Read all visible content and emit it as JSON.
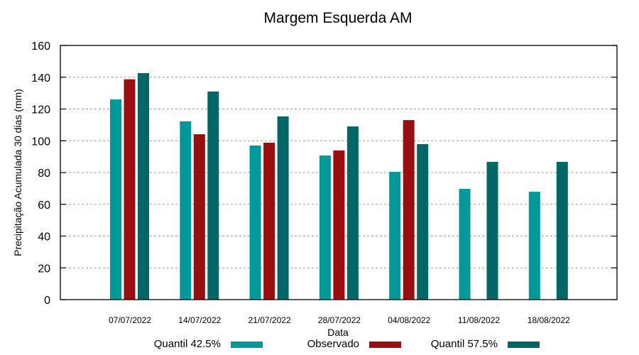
{
  "chart_data": {
    "type": "bar",
    "title": "Margem Esquerda AM",
    "xlabel": "Data",
    "ylabel": "Precipitação Acumulada 30 dias (mm)",
    "ylim": [
      0,
      160
    ],
    "yticks": [
      0,
      20,
      40,
      60,
      80,
      100,
      120,
      140,
      160
    ],
    "grid": true,
    "legend_position": "bottom",
    "categories": [
      "07/07/2022",
      "14/07/2022",
      "21/07/2022",
      "28/07/2022",
      "04/08/2022",
      "11/08/2022",
      "18/08/2022"
    ],
    "series": [
      {
        "name": "Quantil 42.5%",
        "color": "#009999",
        "values": [
          126.0,
          112.2,
          97.0,
          90.7,
          80.4,
          69.7,
          67.9
        ]
      },
      {
        "name": "Observado",
        "color": "#990f0f",
        "values": [
          138.7,
          104.1,
          98.8,
          93.9,
          113.0,
          null,
          null
        ]
      },
      {
        "name": "Quantil 57.5%",
        "color": "#006666",
        "values": [
          142.6,
          131.0,
          115.3,
          109.0,
          97.9,
          86.7,
          86.7
        ]
      }
    ]
  }
}
